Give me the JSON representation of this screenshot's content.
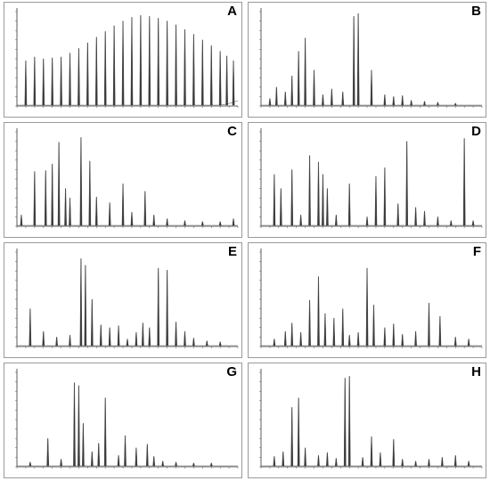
{
  "figure": {
    "panels": [
      "A",
      "B",
      "C",
      "D",
      "E",
      "F",
      "G",
      "H"
    ]
  },
  "chart_data": [
    {
      "panel": "A",
      "type": "line",
      "xlabel": "",
      "ylabel": "",
      "xlim": [
        0,
        50
      ],
      "ylim": [
        0,
        10
      ],
      "peaks": [
        {
          "x": 2,
          "y": 4.8
        },
        {
          "x": 4,
          "y": 5.2
        },
        {
          "x": 6,
          "y": 5.0
        },
        {
          "x": 8,
          "y": 5.1
        },
        {
          "x": 10,
          "y": 5.2
        },
        {
          "x": 12,
          "y": 5.6
        },
        {
          "x": 14,
          "y": 6.1
        },
        {
          "x": 16,
          "y": 6.7
        },
        {
          "x": 18,
          "y": 7.3
        },
        {
          "x": 20,
          "y": 7.9
        },
        {
          "x": 22,
          "y": 8.5
        },
        {
          "x": 24,
          "y": 9.0
        },
        {
          "x": 26,
          "y": 9.4
        },
        {
          "x": 28,
          "y": 9.6
        },
        {
          "x": 30,
          "y": 9.5
        },
        {
          "x": 32,
          "y": 9.3
        },
        {
          "x": 34,
          "y": 9.0
        },
        {
          "x": 36,
          "y": 8.6
        },
        {
          "x": 38,
          "y": 8.1
        },
        {
          "x": 40,
          "y": 7.6
        },
        {
          "x": 42,
          "y": 7.0
        },
        {
          "x": 44,
          "y": 6.4
        },
        {
          "x": 46,
          "y": 5.8
        },
        {
          "x": 47.5,
          "y": 5.3
        },
        {
          "x": 49,
          "y": 4.8
        }
      ]
    },
    {
      "panel": "B",
      "type": "line",
      "xlabel": "",
      "ylabel": "",
      "xlim": [
        0,
        50
      ],
      "ylim": [
        0,
        10
      ],
      "peaks": [
        {
          "x": 2,
          "y": 0.8
        },
        {
          "x": 3.5,
          "y": 2.0
        },
        {
          "x": 5.5,
          "y": 1.5
        },
        {
          "x": 7,
          "y": 3.2
        },
        {
          "x": 8.5,
          "y": 5.8
        },
        {
          "x": 10,
          "y": 7.2
        },
        {
          "x": 12,
          "y": 3.8
        },
        {
          "x": 14,
          "y": 1.2
        },
        {
          "x": 16,
          "y": 1.8
        },
        {
          "x": 18.5,
          "y": 1.5
        },
        {
          "x": 21,
          "y": 9.5
        },
        {
          "x": 22,
          "y": 9.8
        },
        {
          "x": 25,
          "y": 3.8
        },
        {
          "x": 28,
          "y": 1.2
        },
        {
          "x": 30,
          "y": 1.0
        },
        {
          "x": 32,
          "y": 1.1
        },
        {
          "x": 34,
          "y": 0.6
        },
        {
          "x": 37,
          "y": 0.5
        },
        {
          "x": 40,
          "y": 0.4
        },
        {
          "x": 44,
          "y": 0.3
        }
      ]
    },
    {
      "panel": "C",
      "type": "line",
      "xlabel": "",
      "ylabel": "",
      "xlim": [
        0,
        50
      ],
      "ylim": [
        0,
        10
      ],
      "peaks": [
        {
          "x": 1,
          "y": 1.2
        },
        {
          "x": 4,
          "y": 5.8
        },
        {
          "x": 6.5,
          "y": 5.9
        },
        {
          "x": 8,
          "y": 6.6
        },
        {
          "x": 9.5,
          "y": 8.9
        },
        {
          "x": 11,
          "y": 4.0
        },
        {
          "x": 12,
          "y": 3.0
        },
        {
          "x": 14.5,
          "y": 9.4
        },
        {
          "x": 16.5,
          "y": 6.9
        },
        {
          "x": 18,
          "y": 3.1
        },
        {
          "x": 21,
          "y": 2.5
        },
        {
          "x": 24,
          "y": 4.5
        },
        {
          "x": 26,
          "y": 1.5
        },
        {
          "x": 29,
          "y": 3.7
        },
        {
          "x": 31,
          "y": 1.2
        },
        {
          "x": 34,
          "y": 0.8
        },
        {
          "x": 38,
          "y": 0.6
        },
        {
          "x": 42,
          "y": 0.5
        },
        {
          "x": 46,
          "y": 0.5
        },
        {
          "x": 49,
          "y": 0.8
        }
      ]
    },
    {
      "panel": "D",
      "type": "line",
      "xlabel": "",
      "ylabel": "",
      "xlim": [
        0,
        50
      ],
      "ylim": [
        0,
        10
      ],
      "peaks": [
        {
          "x": 3,
          "y": 5.5
        },
        {
          "x": 4.5,
          "y": 4.0
        },
        {
          "x": 7,
          "y": 6.0
        },
        {
          "x": 9,
          "y": 1.2
        },
        {
          "x": 11,
          "y": 7.5
        },
        {
          "x": 13,
          "y": 6.8
        },
        {
          "x": 14,
          "y": 5.5
        },
        {
          "x": 15,
          "y": 4.0
        },
        {
          "x": 17,
          "y": 1.2
        },
        {
          "x": 20,
          "y": 4.5
        },
        {
          "x": 24,
          "y": 1.0
        },
        {
          "x": 26,
          "y": 5.3
        },
        {
          "x": 28,
          "y": 6.2
        },
        {
          "x": 31,
          "y": 2.4
        },
        {
          "x": 33,
          "y": 9.0
        },
        {
          "x": 35,
          "y": 2.0
        },
        {
          "x": 37,
          "y": 1.6
        },
        {
          "x": 40,
          "y": 1.0
        },
        {
          "x": 43,
          "y": 0.6
        },
        {
          "x": 46,
          "y": 9.3
        },
        {
          "x": 48,
          "y": 0.6
        }
      ]
    },
    {
      "panel": "E",
      "type": "line",
      "xlabel": "",
      "ylabel": "",
      "xlim": [
        0,
        50
      ],
      "ylim": [
        0,
        10
      ],
      "peaks": [
        {
          "x": 3,
          "y": 4.0
        },
        {
          "x": 6,
          "y": 1.6
        },
        {
          "x": 9,
          "y": 1.0
        },
        {
          "x": 12,
          "y": 1.2
        },
        {
          "x": 14.5,
          "y": 9.3
        },
        {
          "x": 15.5,
          "y": 8.6
        },
        {
          "x": 17,
          "y": 5.0
        },
        {
          "x": 19,
          "y": 2.3
        },
        {
          "x": 21,
          "y": 2.0
        },
        {
          "x": 23,
          "y": 2.2
        },
        {
          "x": 25,
          "y": 0.8
        },
        {
          "x": 27,
          "y": 1.5
        },
        {
          "x": 28.5,
          "y": 2.5
        },
        {
          "x": 30,
          "y": 2.0
        },
        {
          "x": 32,
          "y": 8.3
        },
        {
          "x": 34,
          "y": 8.1
        },
        {
          "x": 36,
          "y": 2.6
        },
        {
          "x": 38,
          "y": 1.6
        },
        {
          "x": 40,
          "y": 0.9
        },
        {
          "x": 43,
          "y": 0.6
        },
        {
          "x": 46,
          "y": 0.5
        }
      ]
    },
    {
      "panel": "F",
      "type": "line",
      "xlabel": "",
      "ylabel": "",
      "xlim": [
        0,
        50
      ],
      "ylim": [
        0,
        10
      ],
      "peaks": [
        {
          "x": 3,
          "y": 0.8
        },
        {
          "x": 5.5,
          "y": 1.6
        },
        {
          "x": 7,
          "y": 2.5
        },
        {
          "x": 9,
          "y": 1.5
        },
        {
          "x": 11,
          "y": 4.9
        },
        {
          "x": 13,
          "y": 7.4
        },
        {
          "x": 14.5,
          "y": 3.5
        },
        {
          "x": 16.5,
          "y": 3.0
        },
        {
          "x": 18.5,
          "y": 4.0
        },
        {
          "x": 20,
          "y": 1.2
        },
        {
          "x": 22,
          "y": 1.5
        },
        {
          "x": 24,
          "y": 8.3
        },
        {
          "x": 25.5,
          "y": 4.4
        },
        {
          "x": 28,
          "y": 2.0
        },
        {
          "x": 30,
          "y": 2.4
        },
        {
          "x": 32,
          "y": 1.3
        },
        {
          "x": 35,
          "y": 1.6
        },
        {
          "x": 38,
          "y": 4.6
        },
        {
          "x": 40.5,
          "y": 3.2
        },
        {
          "x": 44,
          "y": 1.0
        },
        {
          "x": 47,
          "y": 0.8
        }
      ]
    },
    {
      "panel": "G",
      "type": "line",
      "xlabel": "",
      "ylabel": "",
      "xlim": [
        0,
        50
      ],
      "ylim": [
        0,
        10
      ],
      "peaks": [
        {
          "x": 3,
          "y": 0.5
        },
        {
          "x": 7,
          "y": 3.0
        },
        {
          "x": 10,
          "y": 0.8
        },
        {
          "x": 13,
          "y": 8.9
        },
        {
          "x": 14,
          "y": 8.6
        },
        {
          "x": 15,
          "y": 4.6
        },
        {
          "x": 17,
          "y": 1.6
        },
        {
          "x": 18.5,
          "y": 2.5
        },
        {
          "x": 20,
          "y": 7.3
        },
        {
          "x": 23,
          "y": 1.2
        },
        {
          "x": 24.5,
          "y": 3.3
        },
        {
          "x": 27,
          "y": 2.0
        },
        {
          "x": 29.5,
          "y": 2.4
        },
        {
          "x": 31,
          "y": 1.1
        },
        {
          "x": 33,
          "y": 0.6
        },
        {
          "x": 36,
          "y": 0.5
        },
        {
          "x": 40,
          "y": 0.4
        },
        {
          "x": 44,
          "y": 0.4
        }
      ]
    },
    {
      "panel": "H",
      "type": "line",
      "xlabel": "",
      "ylabel": "",
      "xlim": [
        0,
        50
      ],
      "ylim": [
        0,
        10
      ],
      "peaks": [
        {
          "x": 3,
          "y": 1.1
        },
        {
          "x": 5,
          "y": 1.6
        },
        {
          "x": 7,
          "y": 6.3
        },
        {
          "x": 8.5,
          "y": 7.3
        },
        {
          "x": 10,
          "y": 2.0
        },
        {
          "x": 13,
          "y": 1.2
        },
        {
          "x": 15,
          "y": 1.5
        },
        {
          "x": 17,
          "y": 0.9
        },
        {
          "x": 19,
          "y": 9.4
        },
        {
          "x": 20,
          "y": 9.6
        },
        {
          "x": 23,
          "y": 1.0
        },
        {
          "x": 25,
          "y": 3.2
        },
        {
          "x": 27,
          "y": 1.5
        },
        {
          "x": 30,
          "y": 2.9
        },
        {
          "x": 32,
          "y": 0.8
        },
        {
          "x": 35,
          "y": 0.6
        },
        {
          "x": 38,
          "y": 0.8
        },
        {
          "x": 41,
          "y": 1.0
        },
        {
          "x": 44,
          "y": 1.2
        },
        {
          "x": 47,
          "y": 0.6
        }
      ]
    }
  ]
}
